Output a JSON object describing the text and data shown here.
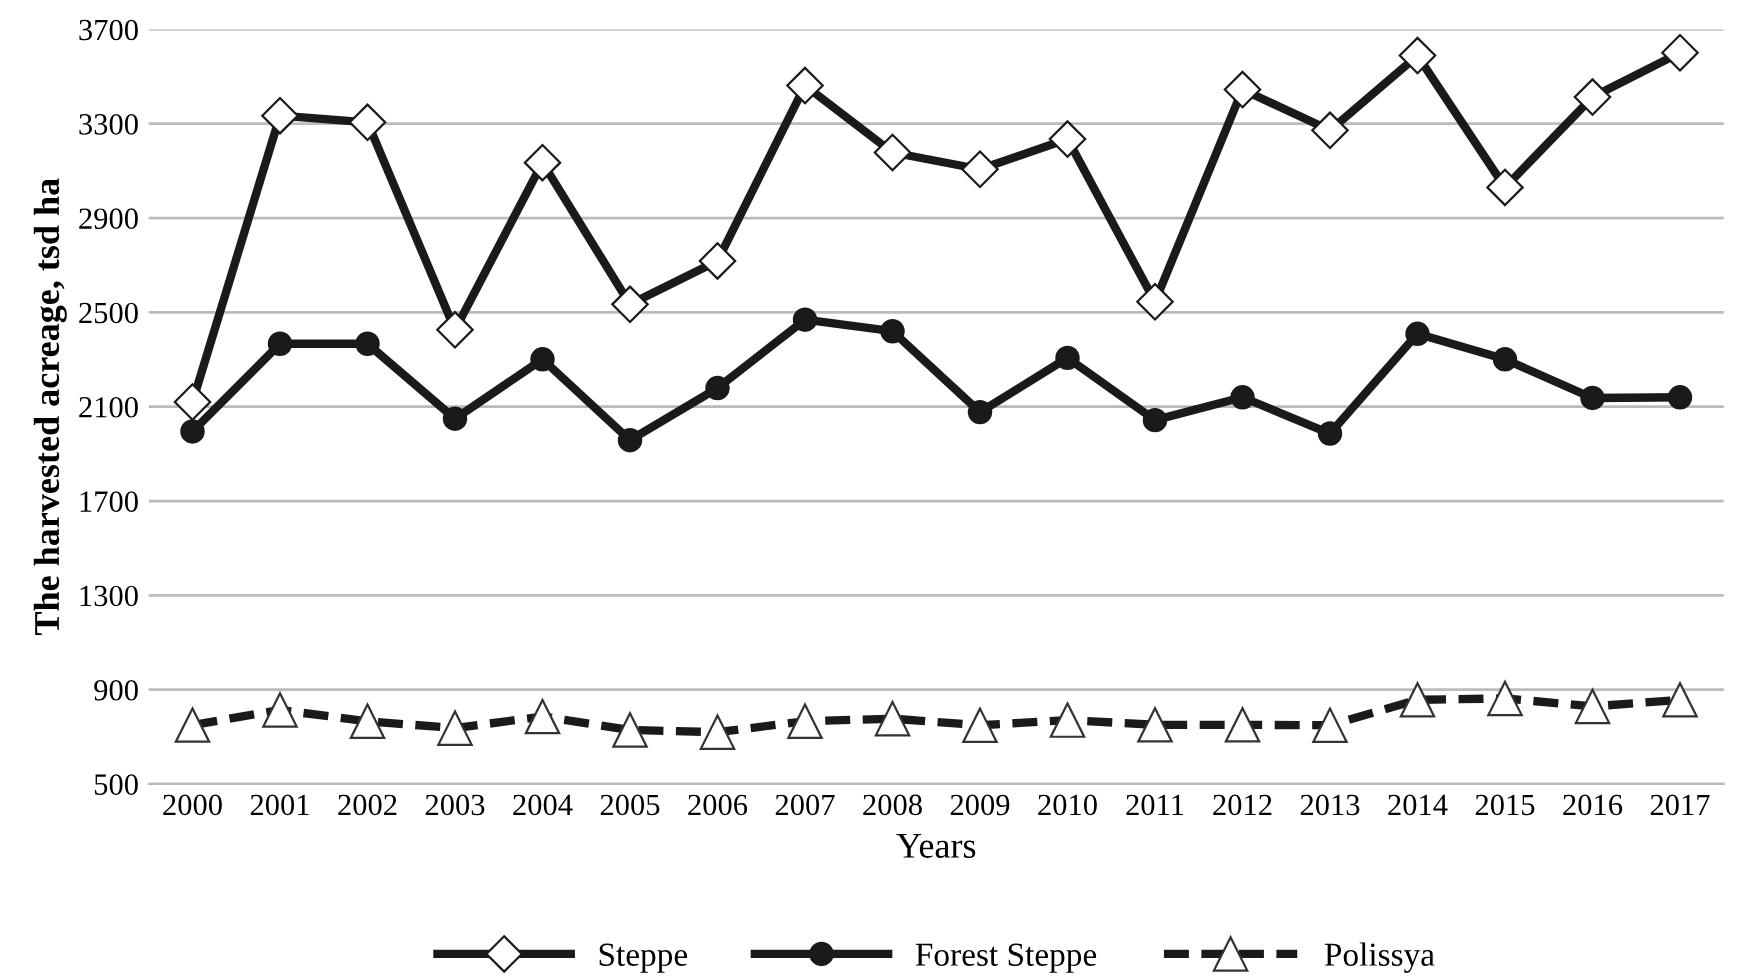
{
  "chart_data": {
    "type": "line",
    "xlabel": "Years",
    "ylabel": "The harvested acreage, tsd ha",
    "categories": [
      "2000",
      "2001",
      "2002",
      "2003",
      "2004",
      "2005",
      "2006",
      "2007",
      "2008",
      "2009",
      "2010",
      "2011",
      "2012",
      "2013",
      "2014",
      "2015",
      "2016",
      "2017"
    ],
    "ylim": [
      500,
      3700
    ],
    "yticks": [
      500,
      900,
      1300,
      1700,
      2100,
      2500,
      2900,
      3300,
      3700
    ],
    "grid": "y",
    "legend": "bottom",
    "series": [
      {
        "name": "Steppe",
        "color": "#1a1a1a",
        "marker": "diamond",
        "line_style": "solid",
        "values": [
          2120,
          3334,
          3306,
          2426,
          3135,
          2534,
          2718,
          3462,
          3178,
          3107,
          3235,
          2545,
          3445,
          3272,
          3589,
          3030,
          3413,
          3601
        ]
      },
      {
        "name": "Forest Steppe",
        "color": "#1a1a1a",
        "marker": "circle",
        "line_style": "solid",
        "values": [
          1995,
          2367,
          2367,
          2049,
          2301,
          1958,
          2179,
          2469,
          2420,
          2077,
          2307,
          2043,
          2140,
          1986,
          2409,
          2301,
          2137,
          2140
        ]
      },
      {
        "name": "Polissya",
        "color": "#1a1a1a",
        "marker": "triangle",
        "line_style": "dashed",
        "values": [
          750,
          814,
          766,
          737,
          786,
          729,
          720,
          766,
          777,
          749,
          771,
          751,
          751,
          749,
          857,
          863,
          829,
          857
        ]
      }
    ]
  }
}
